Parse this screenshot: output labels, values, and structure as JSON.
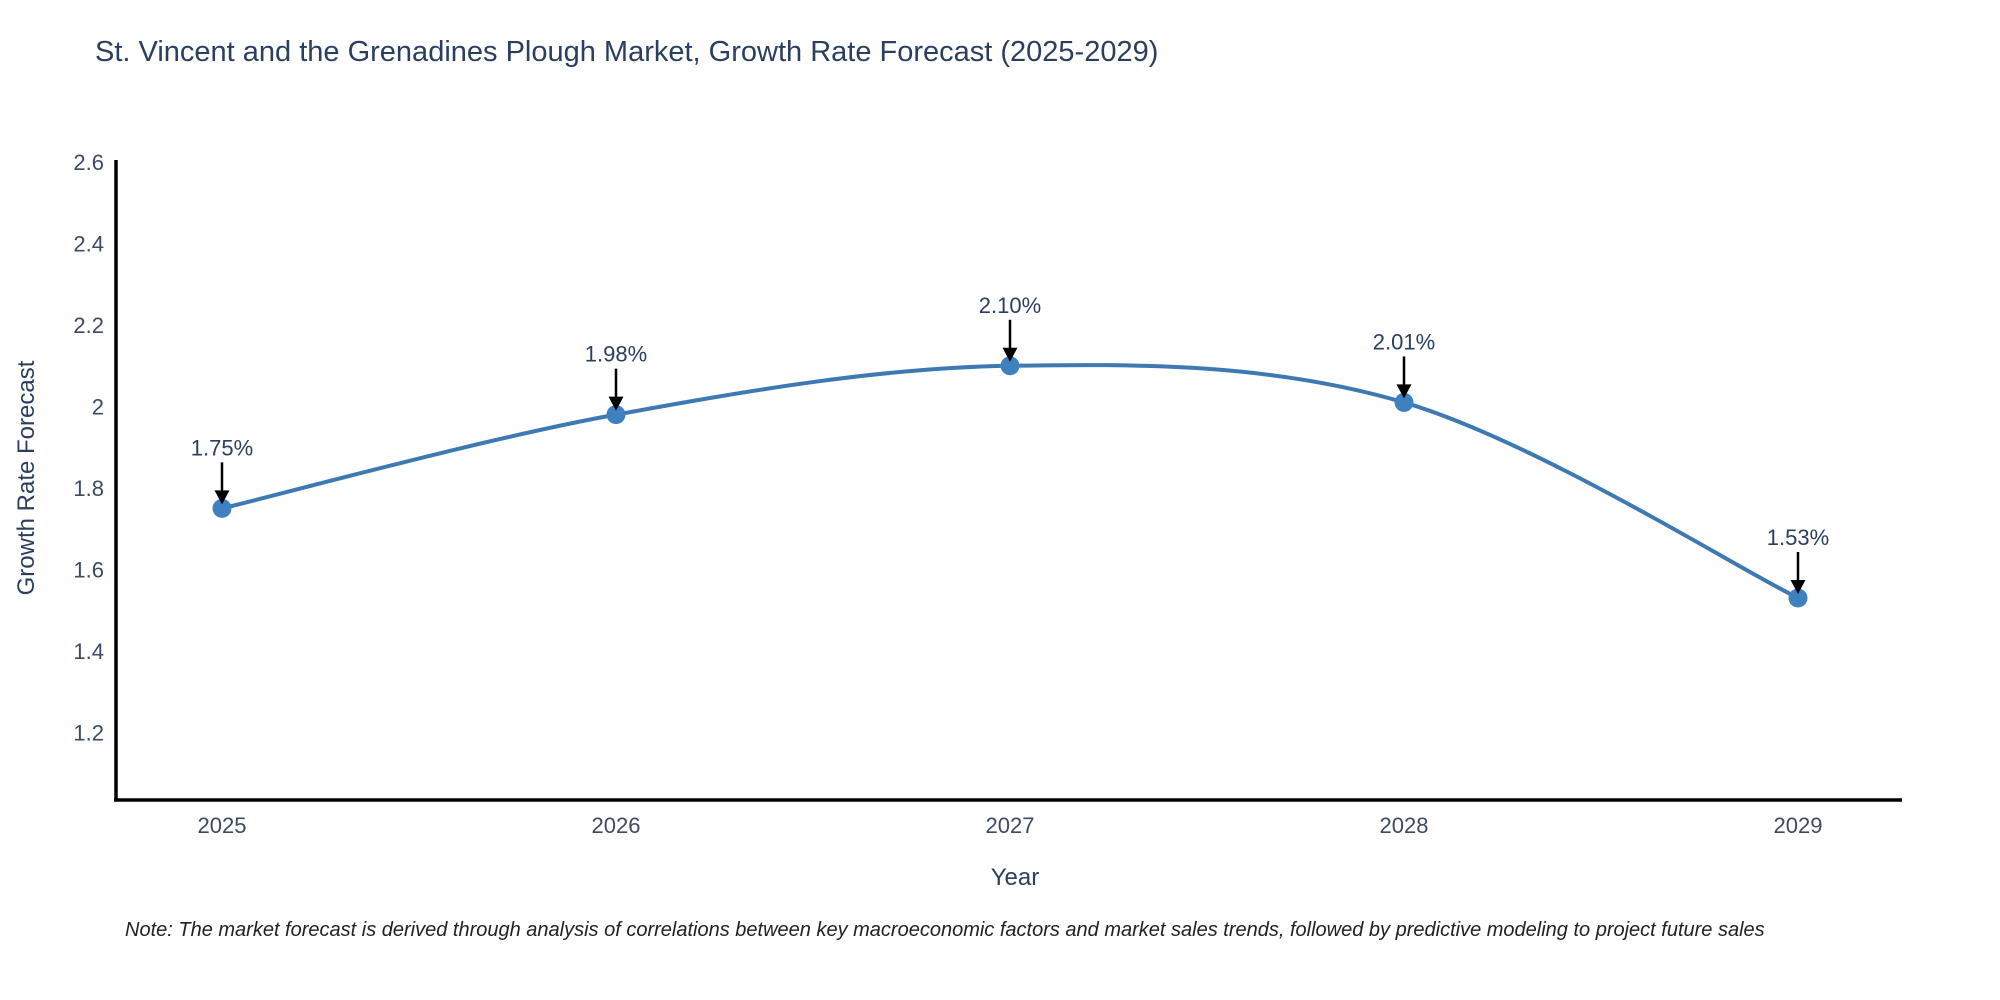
{
  "page": {
    "background": "#ffffff"
  },
  "chart_data": {
    "type": "line",
    "title": "St. Vincent and the Grenadines Plough Market, Growth Rate Forecast (2025-2029)",
    "xlabel": "Year",
    "ylabel": "Growth Rate Forecast",
    "categories": [
      "2025",
      "2026",
      "2027",
      "2028",
      "2029"
    ],
    "x": [
      2025,
      2026,
      2027,
      2028,
      2029
    ],
    "values": [
      1.75,
      1.98,
      2.1,
      2.01,
      1.53
    ],
    "point_labels": [
      "1.75%",
      "1.98%",
      "2.10%",
      "2.01%",
      "1.53%"
    ],
    "y_tick_values": [
      2.6,
      2.4,
      2.2,
      2.0,
      1.8,
      1.6,
      1.4,
      1.2
    ],
    "y_tick_labels": [
      "2.6",
      "2.4",
      "2.2",
      "2",
      "1.8",
      "1.6",
      "1.4",
      "1.2"
    ],
    "ylim": [
      1.03,
      2.6
    ],
    "line_shape": "spline",
    "grid": false,
    "legend_position": "none",
    "colors": {
      "line": "#3e79b4",
      "marker": "#3f80c0",
      "axis": "#000000",
      "annotation_arrow": "#000000",
      "title_text": "#2a3f5f",
      "tick_text": "#3c4a63",
      "annotation_text": "#2a3f5f"
    }
  },
  "note": {
    "text": "Note: The market forecast is derived through analysis of correlations between key macroeconomic factors and market sales trends, followed by predictive modeling to project future sales"
  }
}
